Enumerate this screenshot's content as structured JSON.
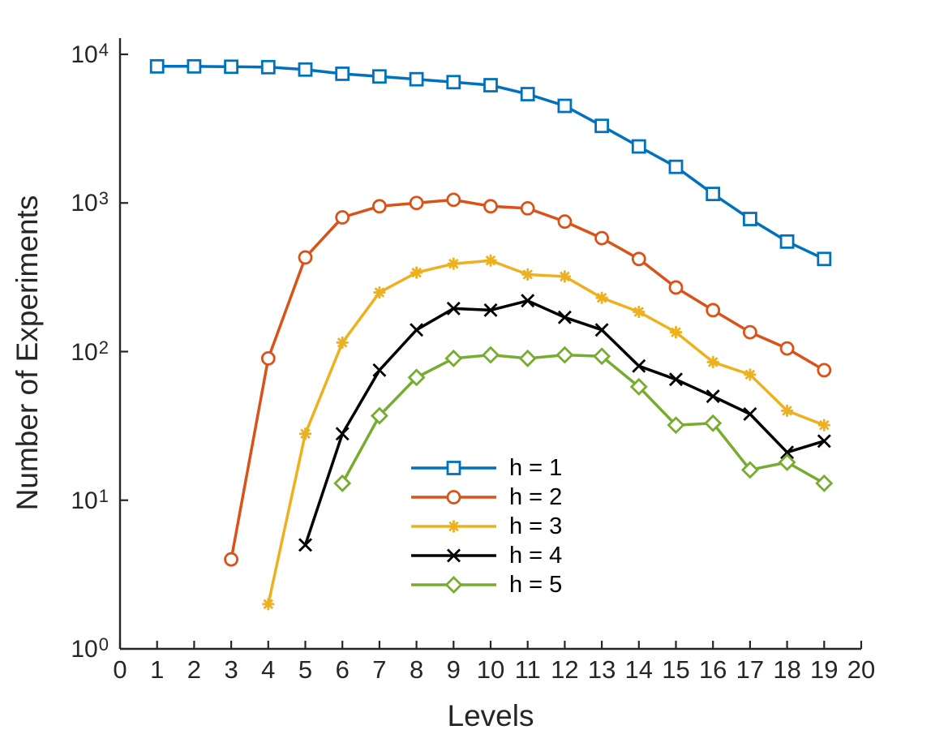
{
  "chart_data": {
    "type": "line",
    "title": "",
    "xlabel": "Levels",
    "ylabel": "Number of Experiments",
    "style": {
      "background": "#ffffff",
      "axis_color": "#262626",
      "text_color": "#262626",
      "line_width": 3.5,
      "grid": false
    },
    "x_axis": {
      "min": 0,
      "max": 20,
      "ticks": [
        0,
        1,
        2,
        3,
        4,
        5,
        6,
        7,
        8,
        9,
        10,
        11,
        12,
        13,
        14,
        15,
        16,
        17,
        18,
        19,
        20
      ]
    },
    "y_axis": {
      "scale": "log",
      "min_exp": 0,
      "max_exp": 4,
      "tick_base": "10",
      "tick_exponents": [
        0,
        1,
        2,
        3,
        4
      ]
    },
    "legend": {
      "position": "inside-center-bottom",
      "entries": [
        "h = 1",
        "h = 2",
        "h = 3",
        "h = 4",
        "h = 5"
      ]
    },
    "series": [
      {
        "name": "h = 1",
        "color": "#0072BD",
        "marker": "square",
        "points": [
          [
            1,
            8300
          ],
          [
            2,
            8300
          ],
          [
            3,
            8250
          ],
          [
            4,
            8200
          ],
          [
            5,
            7900
          ],
          [
            6,
            7400
          ],
          [
            7,
            7100
          ],
          [
            8,
            6800
          ],
          [
            9,
            6500
          ],
          [
            10,
            6200
          ],
          [
            11,
            5400
          ],
          [
            12,
            4500
          ],
          [
            13,
            3300
          ],
          [
            14,
            2400
          ],
          [
            15,
            1750
          ],
          [
            16,
            1150
          ],
          [
            17,
            780
          ],
          [
            18,
            550
          ],
          [
            19,
            420
          ]
        ]
      },
      {
        "name": "h = 2",
        "color": "#D95319",
        "marker": "circle",
        "points": [
          [
            3,
            4
          ],
          [
            4,
            90
          ],
          [
            5,
            430
          ],
          [
            6,
            800
          ],
          [
            7,
            950
          ],
          [
            8,
            1000
          ],
          [
            9,
            1050
          ],
          [
            10,
            950
          ],
          [
            11,
            920
          ],
          [
            12,
            750
          ],
          [
            13,
            580
          ],
          [
            14,
            420
          ],
          [
            15,
            270
          ],
          [
            16,
            190
          ],
          [
            17,
            135
          ],
          [
            18,
            105
          ],
          [
            19,
            75
          ]
        ]
      },
      {
        "name": "h = 3",
        "color": "#EDB120",
        "marker": "asterisk",
        "points": [
          [
            4,
            2
          ],
          [
            5,
            28
          ],
          [
            6,
            115
          ],
          [
            7,
            250
          ],
          [
            8,
            340
          ],
          [
            9,
            390
          ],
          [
            10,
            410
          ],
          [
            11,
            330
          ],
          [
            12,
            320
          ],
          [
            13,
            230
          ],
          [
            14,
            185
          ],
          [
            15,
            135
          ],
          [
            16,
            85
          ],
          [
            17,
            70
          ],
          [
            18,
            40
          ],
          [
            19,
            32
          ]
        ]
      },
      {
        "name": "h = 4",
        "color": "#000000",
        "marker": "x",
        "points": [
          [
            5,
            5
          ],
          [
            6,
            28
          ],
          [
            7,
            75
          ],
          [
            8,
            140
          ],
          [
            9,
            195
          ],
          [
            10,
            190
          ],
          [
            11,
            220
          ],
          [
            12,
            170
          ],
          [
            13,
            140
          ],
          [
            14,
            80
          ],
          [
            15,
            65
          ],
          [
            16,
            50
          ],
          [
            17,
            38
          ],
          [
            18,
            21
          ],
          [
            19,
            25
          ]
        ]
      },
      {
        "name": "h = 5",
        "color": "#77AC30",
        "marker": "diamond",
        "points": [
          [
            6,
            13
          ],
          [
            7,
            37
          ],
          [
            8,
            67
          ],
          [
            9,
            90
          ],
          [
            10,
            95
          ],
          [
            11,
            90
          ],
          [
            12,
            95
          ],
          [
            13,
            93
          ],
          [
            14,
            58
          ],
          [
            15,
            32
          ],
          [
            16,
            33
          ],
          [
            17,
            16
          ],
          [
            18,
            18
          ],
          [
            19,
            13
          ]
        ]
      }
    ]
  }
}
